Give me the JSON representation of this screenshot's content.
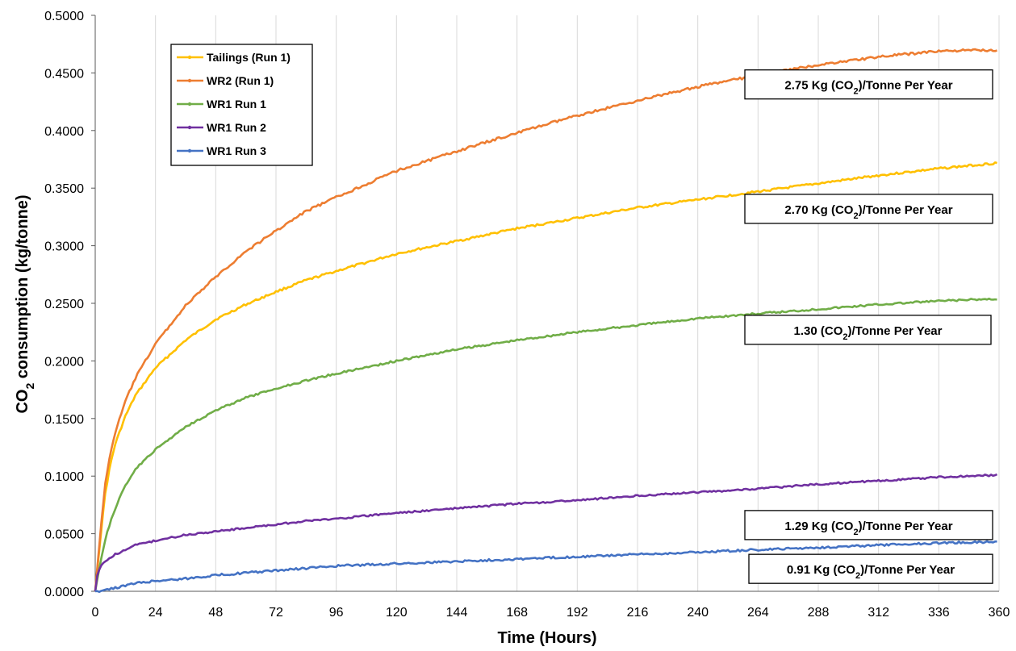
{
  "chart_data": {
    "type": "line",
    "title": "",
    "xlabel": "Time (Hours)",
    "ylabel": {
      "prefix": "CO",
      "sub": "2",
      "suffix": " consumption (kg/tonne)"
    },
    "xlim": [
      0,
      360
    ],
    "ylim": [
      0,
      0.5
    ],
    "xticks": [
      0,
      24,
      48,
      72,
      96,
      120,
      144,
      168,
      192,
      216,
      240,
      264,
      288,
      312,
      336,
      360
    ],
    "xtick_labels": [
      "0",
      "24",
      "48",
      "72",
      "96",
      "120",
      "144",
      "168",
      "192",
      "216",
      "240",
      "264",
      "288",
      "312",
      "336",
      "360"
    ],
    "yticks": [
      0,
      0.05,
      0.1,
      0.15,
      0.2,
      0.25,
      0.3,
      0.35,
      0.4,
      0.45,
      0.5
    ],
    "ytick_labels": [
      "0.0000",
      "0.0500",
      "0.1000",
      "0.1500",
      "0.2000",
      "0.2500",
      "0.3000",
      "0.3500",
      "0.4000",
      "0.4500",
      "0.5000"
    ],
    "grid": "vertical",
    "legend_position": "top-left",
    "series": [
      {
        "name": "Tailings (Run 1)",
        "color": "#FFC000",
        "x": [
          0,
          2,
          4,
          6,
          8,
          12,
          16,
          24,
          36,
          48,
          60,
          72,
          84,
          96,
          120,
          144,
          168,
          192,
          216,
          240,
          264,
          288,
          312,
          336,
          360
        ],
        "y": [
          0,
          0.045,
          0.085,
          0.11,
          0.128,
          0.152,
          0.17,
          0.194,
          0.218,
          0.236,
          0.249,
          0.26,
          0.27,
          0.278,
          0.293,
          0.304,
          0.315,
          0.324,
          0.333,
          0.34,
          0.347,
          0.354,
          0.361,
          0.367,
          0.372
        ]
      },
      {
        "name": "WR2 (Run 1)",
        "color": "#ED7D31",
        "x": [
          0,
          2,
          4,
          6,
          8,
          12,
          16,
          24,
          36,
          48,
          60,
          72,
          84,
          96,
          120,
          144,
          168,
          192,
          216,
          240,
          264,
          288,
          312,
          336,
          360
        ],
        "y": [
          0,
          0.05,
          0.093,
          0.12,
          0.138,
          0.165,
          0.185,
          0.215,
          0.248,
          0.273,
          0.295,
          0.313,
          0.33,
          0.342,
          0.365,
          0.382,
          0.398,
          0.413,
          0.426,
          0.438,
          0.448,
          0.457,
          0.464,
          0.469,
          0.47
        ]
      },
      {
        "name": "WR1 Run 1",
        "color": "#70AD47",
        "x": [
          0,
          2,
          4,
          6,
          8,
          12,
          16,
          24,
          36,
          48,
          60,
          72,
          84,
          96,
          120,
          144,
          168,
          192,
          216,
          240,
          264,
          288,
          312,
          336,
          360
        ],
        "y": [
          0,
          0.025,
          0.045,
          0.06,
          0.072,
          0.092,
          0.106,
          0.123,
          0.143,
          0.157,
          0.168,
          0.176,
          0.183,
          0.189,
          0.2,
          0.21,
          0.218,
          0.225,
          0.231,
          0.237,
          0.241,
          0.245,
          0.249,
          0.252,
          0.254
        ]
      },
      {
        "name": "WR1 Run 2",
        "color": "#7030A0",
        "x": [
          0,
          1,
          2,
          4,
          8,
          12,
          16,
          24,
          36,
          48,
          60,
          72,
          84,
          96,
          120,
          144,
          168,
          192,
          216,
          240,
          264,
          288,
          312,
          336,
          360
        ],
        "y": [
          0,
          0.017,
          0.021,
          0.026,
          0.032,
          0.036,
          0.04,
          0.044,
          0.049,
          0.052,
          0.055,
          0.058,
          0.061,
          0.063,
          0.068,
          0.072,
          0.076,
          0.079,
          0.083,
          0.086,
          0.089,
          0.093,
          0.096,
          0.099,
          0.101
        ]
      },
      {
        "name": "WR1 Run 3",
        "color": "#4472C4",
        "x": [
          0,
          4,
          8,
          12,
          16,
          24,
          36,
          48,
          60,
          72,
          84,
          96,
          120,
          144,
          168,
          192,
          216,
          240,
          264,
          288,
          312,
          336,
          360
        ],
        "y": [
          0,
          0.001,
          0.003,
          0.005,
          0.007,
          0.009,
          0.011,
          0.014,
          0.016,
          0.018,
          0.02,
          0.022,
          0.024,
          0.026,
          0.028,
          0.03,
          0.032,
          0.034,
          0.036,
          0.038,
          0.04,
          0.042,
          0.043
        ]
      }
    ],
    "annotations": [
      {
        "pre": "2.75 Kg (CO",
        "sub": "2",
        "post": ")/Tonne Per Year",
        "anchor_y": 0.44
      },
      {
        "pre": "2.70 Kg (CO",
        "sub": "2",
        "post": ")/Tonne Per Year",
        "anchor_y": 0.332
      },
      {
        "pre": "1.30 (CO",
        "sub": "2",
        "post": ")/Tonne Per Year",
        "anchor_y": 0.227
      },
      {
        "pre": "1.29 Kg (CO",
        "sub": "2",
        "post": ")/Tonne Per Year",
        "anchor_y": 0.0575
      },
      {
        "pre": "0.91 Kg (CO",
        "sub": "2",
        "post": ")/Tonne Per Year",
        "anchor_y": 0.0195
      }
    ]
  }
}
